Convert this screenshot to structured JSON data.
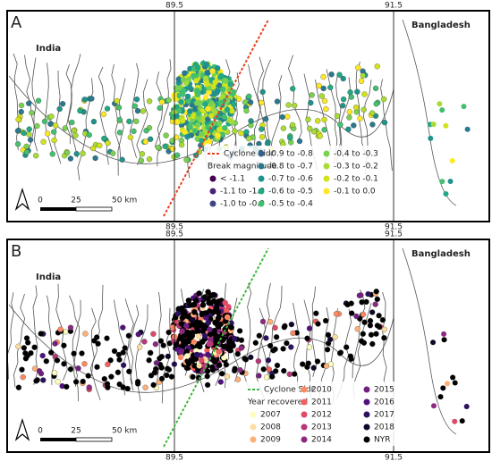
{
  "ticks": [
    89.5,
    91.5
  ],
  "scale_bar": {
    "labels": [
      "0",
      "25",
      "50 km"
    ]
  },
  "panels": [
    {
      "label": "A",
      "countries": [
        "India",
        "Bangladesh"
      ],
      "legend": {
        "line": {
          "name": "Cyclone Sidr",
          "color": "#e8411f"
        },
        "title": "Break magnitude",
        "entries": [
          {
            "name": "< -1.1",
            "color": "#440154"
          },
          {
            "name": "-1.1 to -1.0",
            "color": "#482475"
          },
          {
            "name": "-1.0 to -0.9",
            "color": "#414487"
          },
          {
            "name": "-0.9 to -0.8",
            "color": "#355f8d"
          },
          {
            "name": "-0.8 to -0.7",
            "color": "#2a788e"
          },
          {
            "name": "-0.7 to -0.6",
            "color": "#21918c"
          },
          {
            "name": "-0.6 to -0.5",
            "color": "#22a884"
          },
          {
            "name": "-0.5 to -0.4",
            "color": "#44bf70"
          },
          {
            "name": "-0.4 to -0.3",
            "color": "#7ad151"
          },
          {
            "name": "-0.3 to -0.2",
            "color": "#a8db34"
          },
          {
            "name": "-0.2 to -0.1",
            "color": "#d2e21b"
          },
          {
            "name": "-0.1 to 0.0",
            "color": "#fde725"
          }
        ]
      }
    },
    {
      "label": "B",
      "countries": [
        "India",
        "Bangladesh"
      ],
      "legend": {
        "line": {
          "name": "Cyclone Sidr",
          "color": "#3fb83f"
        },
        "title": "Year recovered",
        "entries": [
          {
            "name": "2007",
            "color": "#fcfdbf"
          },
          {
            "name": "2008",
            "color": "#fddea0"
          },
          {
            "name": "2009",
            "color": "#feb078"
          },
          {
            "name": "2010",
            "color": "#fc8961"
          },
          {
            "name": "2011",
            "color": "#f1605d"
          },
          {
            "name": "2012",
            "color": "#de4968"
          },
          {
            "name": "2013",
            "color": "#b73779"
          },
          {
            "name": "2014",
            "color": "#8c2981"
          },
          {
            "name": "2015",
            "color": "#721f81"
          },
          {
            "name": "2016",
            "color": "#51127c"
          },
          {
            "name": "2017",
            "color": "#2c115f"
          },
          {
            "name": "2018",
            "color": "#0d0829"
          },
          {
            "name": "NYR",
            "color": "#000000"
          }
        ]
      }
    }
  ]
}
